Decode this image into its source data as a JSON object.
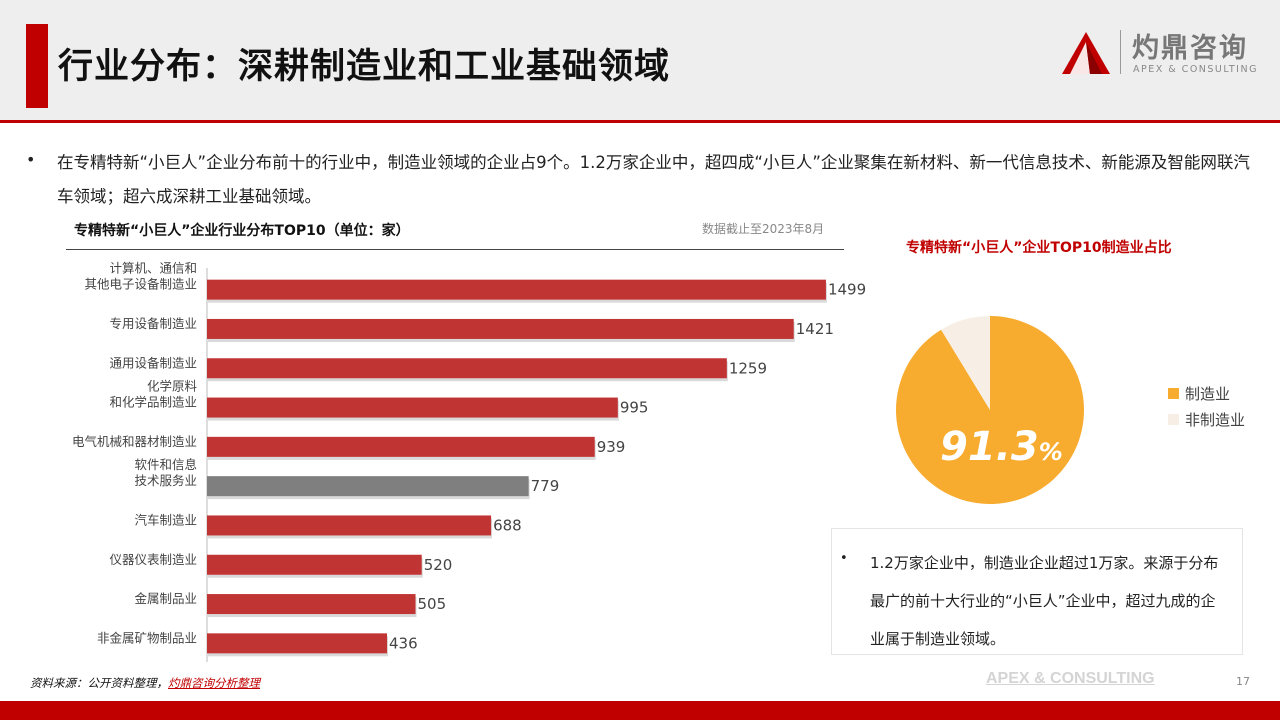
{
  "header": {
    "title": "行业分布：深耕制造业和工业基础领域",
    "logo_cn": "灼鼎咨询",
    "logo_en": "APEX & CONSULTING"
  },
  "intro": {
    "bullet": "•",
    "text": "在专精特新“小巨人”企业分布前十的行业中，制造业领域的企业占9个。1.2万家企业中，超四成“小巨人”企业聚集在新材料、新一代信息技术、新能源及智能网联汽车领域；超六成深耕工业基础领域。"
  },
  "bar_panel": {
    "title": "专精特新“小巨人”企业行业分布TOP10（单位：家）",
    "note": "数据截止至2023年8月"
  },
  "pie_panel": {
    "title": "专精特新“小巨人”企业TOP10制造业占比",
    "value_label": "91.3",
    "unit": "%"
  },
  "note_box": {
    "bullet": "•",
    "text": "1.2万家企业中，制造业企业超过1万家。来源于分布最广的前十大行业的“小巨人”企业中，超过九成的企业属于制造业领域。"
  },
  "footer": {
    "source_prefix": "资料来源：公开资料整理，",
    "source_link": "灼鼎咨询分析整理",
    "brand": "APEX & CONSULTING",
    "page": "17"
  },
  "colors": {
    "accent": "#c00000",
    "bar": "#c13434",
    "bar_highlight": "#7f7f7f",
    "pie_main": "#f8ac2f",
    "pie_other": "#f7efe5"
  },
  "chart_data": [
    {
      "type": "bar",
      "orientation": "horizontal",
      "categories": [
        [
          "计算机、通信和",
          "其他电子设备制造业"
        ],
        [
          "专用设备制造业"
        ],
        [
          "通用设备制造业"
        ],
        [
          "化学原料",
          "和化学品制造业"
        ],
        [
          "电气机械和器材制造业"
        ],
        [
          "软件和信息",
          "技术服务业"
        ],
        [
          "汽车制造业"
        ],
        [
          "仪器仪表制造业"
        ],
        [
          "金属制品业"
        ],
        [
          "非金属矿物制品业"
        ]
      ],
      "values": [
        1499,
        1421,
        1259,
        995,
        939,
        779,
        688,
        520,
        505,
        436
      ],
      "highlight_index": 5,
      "xlim": [
        0,
        1550
      ],
      "grid": false
    },
    {
      "type": "pie",
      "labels": [
        "制造业",
        "非制造业"
      ],
      "values": [
        91.3,
        8.7
      ],
      "legend": "right"
    }
  ]
}
